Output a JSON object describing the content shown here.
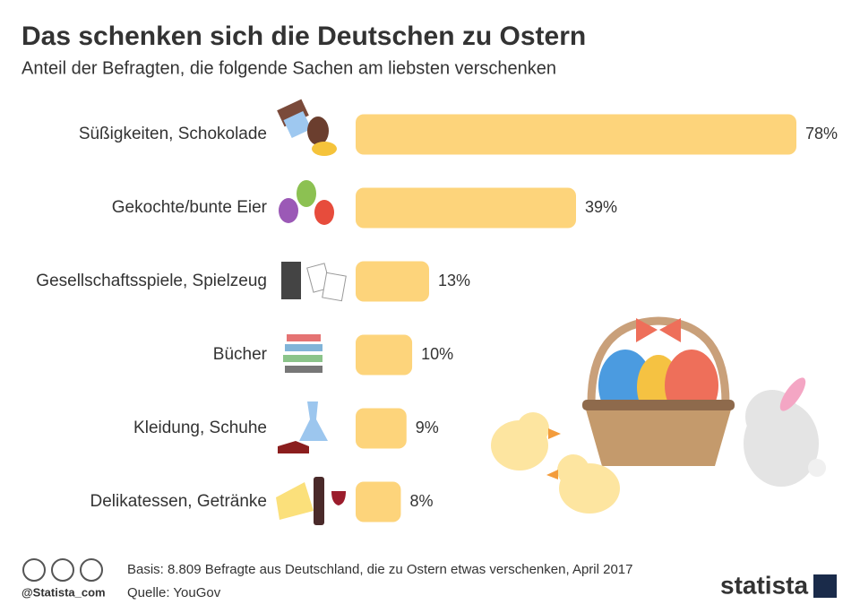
{
  "chart_data": {
    "type": "bar",
    "orientation": "horizontal",
    "title": "Das schenken sich die Deutschen zu Ostern",
    "subtitle": "Anteil der Befragten, die folgende Sachen am liebsten verschenken",
    "categories": [
      "Süßigkeiten, Schokolade",
      "Gekochte/bunte Eier",
      "Gesellschaftsspiele, Spielzeug",
      "Bücher",
      "Kleidung, Schuhe",
      "Delikatessen, Getränke"
    ],
    "values": [
      78,
      39,
      13,
      10,
      9,
      8
    ],
    "value_labels": [
      "78%",
      "39%",
      "13%",
      "10%",
      "9%",
      "8%"
    ],
    "color": "#fdd47b"
  },
  "footer": {
    "basis": "Basis: 8.809 Befragte aus Deutschland, die zu Ostern etwas verschenken, April 2017",
    "source": "Quelle: YouGov",
    "handle": "@Statista_com",
    "brand": "statista"
  }
}
